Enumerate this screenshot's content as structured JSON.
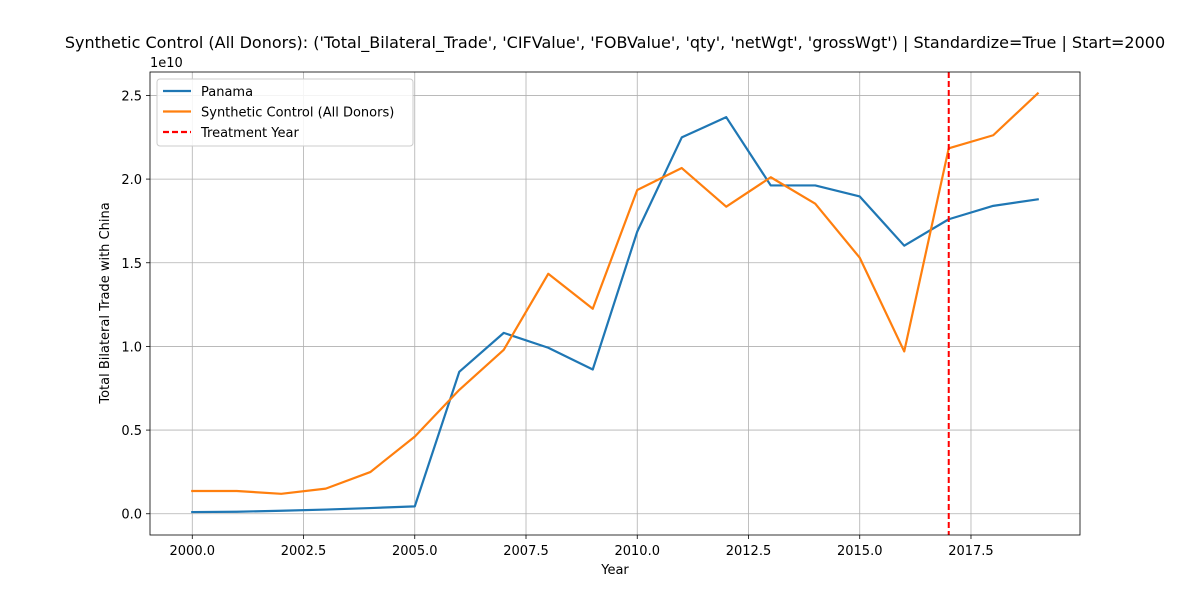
{
  "chart_data": {
    "type": "line",
    "title": "Synthetic Control (All Donors): ('Total_Bilateral_Trade', 'CIFValue', 'FOBValue', 'qty', 'netWgt', 'grossWgt') | Standardize=True | Start=2000",
    "xlabel": "Year",
    "ylabel": "Total Bilateral Trade with China",
    "y_offset_label": "1e10",
    "x_ticks": [
      "2000.0",
      "2002.5",
      "2005.0",
      "2007.5",
      "2010.0",
      "2012.5",
      "2015.0",
      "2017.5"
    ],
    "y_ticks": [
      "0.0",
      "0.5",
      "1.0",
      "1.5",
      "2.0",
      "2.5"
    ],
    "xlim": [
      1999.05,
      2019.95
    ],
    "ylim": [
      -1270000000.0,
      26400000000.0
    ],
    "grid": true,
    "legend_position": "top-left",
    "x": [
      2000,
      2001,
      2002,
      2003,
      2004,
      2005,
      2006,
      2007,
      2008,
      2009,
      2010,
      2011,
      2012,
      2013,
      2014,
      2015,
      2016,
      2017,
      2018,
      2019
    ],
    "series": [
      {
        "name": "Panama",
        "color": "#1f77b4",
        "values": [
          100000000.0,
          120000000.0,
          180000000.0,
          250000000.0,
          340000000.0,
          440000000.0,
          8480000000.0,
          10810000000.0,
          9920000000.0,
          8620000000.0,
          16860000000.0,
          22490000000.0,
          23700000000.0,
          19620000000.0,
          19620000000.0,
          18960000000.0,
          16020000000.0,
          17600000000.0,
          18400000000.0,
          18790000000.0
        ]
      },
      {
        "name": "Synthetic Control (All Donors)",
        "color": "#ff7f0e",
        "values": [
          1360000000.0,
          1360000000.0,
          1190000000.0,
          1500000000.0,
          2490000000.0,
          4610000000.0,
          7400000000.0,
          9800000000.0,
          14340000000.0,
          12250000000.0,
          19350000000.0,
          20660000000.0,
          18350000000.0,
          20110000000.0,
          18530000000.0,
          15300000000.0,
          9700000000.0,
          21840000000.0,
          22620000000.0,
          25120000000.0
        ]
      }
    ],
    "treatment": {
      "name": "Treatment Year",
      "x": 2017,
      "color": "#ff0000"
    }
  }
}
